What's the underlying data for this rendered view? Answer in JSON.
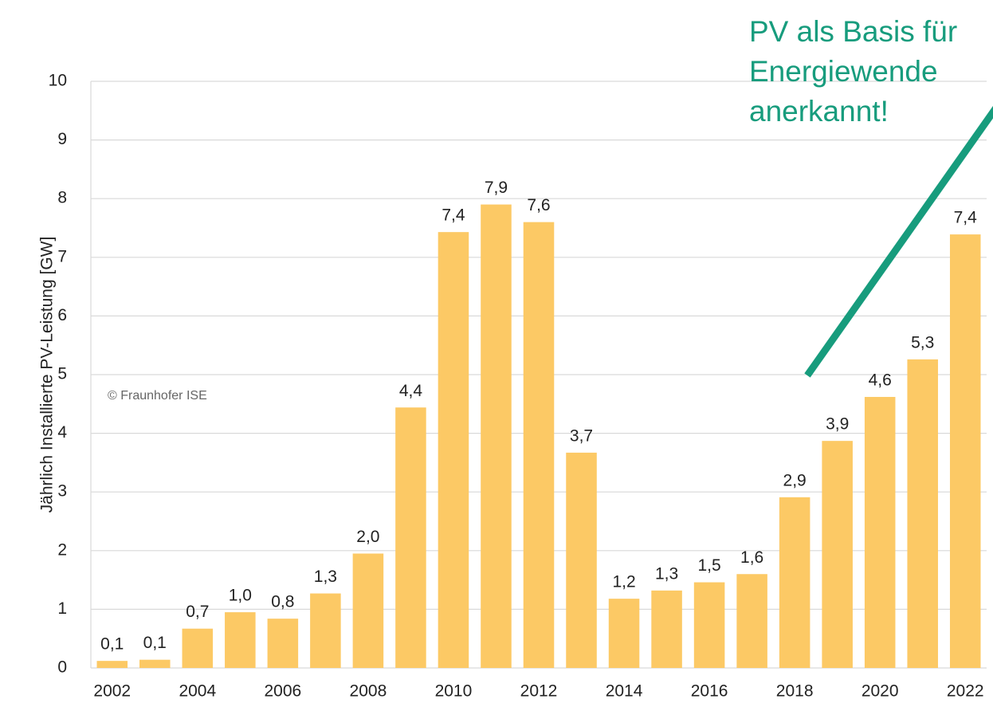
{
  "chart_data": {
    "type": "bar",
    "y_axis_label": "Jährlich Installierte PV-Leistung [GW]",
    "annotation": [
      "PV als Basis für",
      "Energiewende",
      "anerkannt!"
    ],
    "copyright": "© Fraunhofer ISE",
    "categories": [
      "2002",
      null,
      "2004",
      null,
      "2006",
      null,
      "2008",
      null,
      "2010",
      null,
      "2012",
      null,
      "2014",
      null,
      "2016",
      null,
      "2018",
      null,
      "2020",
      null,
      "2022"
    ],
    "values": [
      0.12,
      0.14,
      0.67,
      0.95,
      0.84,
      1.27,
      1.95,
      4.44,
      7.43,
      7.9,
      7.6,
      3.67,
      1.18,
      1.32,
      1.46,
      1.6,
      2.91,
      3.87,
      4.62,
      5.26,
      7.39
    ],
    "value_labels": [
      "0,1",
      "0,1",
      "0,7",
      "1,0",
      "0,8",
      "1,3",
      "2,0",
      "4,4",
      "7,4",
      "7,9",
      "7,6",
      "3,7",
      "1,2",
      "1,3",
      "1,5",
      "1,6",
      "2,9",
      "3,9",
      "4,6",
      "5,3",
      "7,4"
    ],
    "color": "#fcc965",
    "ylim": [
      0,
      10
    ],
    "yticks": [
      0,
      1,
      2,
      3,
      4,
      5,
      6,
      7,
      8,
      9,
      10
    ],
    "grid": true
  }
}
